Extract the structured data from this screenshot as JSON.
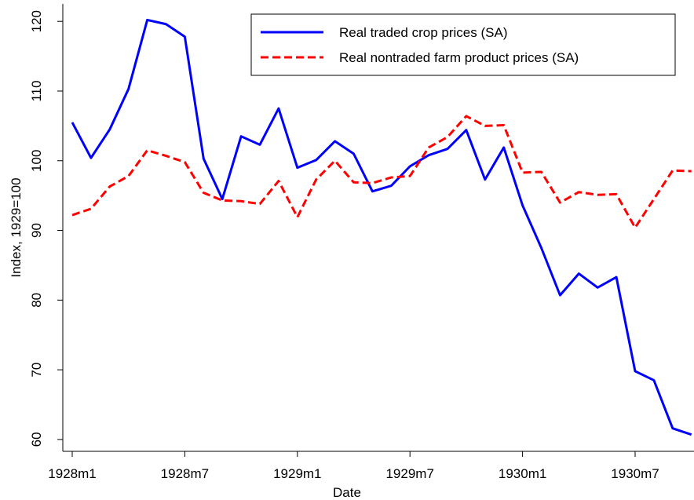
{
  "chart_data": {
    "type": "line",
    "xlabel": "Date",
    "ylabel": "Index, 1929=100",
    "categories": [
      "1928m1",
      null,
      null,
      null,
      null,
      null,
      "1928m7",
      null,
      null,
      null,
      null,
      null,
      "1929m1",
      null,
      null,
      null,
      null,
      null,
      "1929m7",
      null,
      null,
      null,
      null,
      null,
      "1930m1",
      null,
      null,
      null,
      null,
      null,
      "1930m7",
      null,
      null,
      null
    ],
    "series": [
      {
        "name": "Real traded crop prices (SA)",
        "color": "#0000ff",
        "dash": "solid",
        "values": [
          105.5,
          100.4,
          104.5,
          110.3,
          120.2,
          119.6,
          117.8,
          100.3,
          94.5,
          103.5,
          102.3,
          107.5,
          99.0,
          100.1,
          102.8,
          101.0,
          95.6,
          96.4,
          99.2,
          100.8,
          101.7,
          104.4,
          97.3,
          101.9,
          93.6,
          87.5,
          80.7,
          83.8,
          81.8,
          83.3,
          69.8,
          68.5,
          61.6,
          60.7
        ]
      },
      {
        "name": "Real nontraded farm product prices (SA)",
        "color": "#ff0000",
        "dash": "dashed",
        "values": [
          92.2,
          93.1,
          96.3,
          97.8,
          101.5,
          100.7,
          99.8,
          95.4,
          94.3,
          94.2,
          93.8,
          97.1,
          91.9,
          97.3,
          100.0,
          96.9,
          96.8,
          97.6,
          97.8,
          101.9,
          103.4,
          106.4,
          105.0,
          105.1,
          98.3,
          98.4,
          94.0,
          95.5,
          95.1,
          95.2,
          90.4,
          94.5,
          98.6,
          98.5
        ]
      }
    ],
    "ylim": [
      58.3,
      122.5
    ],
    "yticks": [
      60,
      70,
      80,
      90,
      100,
      110,
      120
    ],
    "grid": false,
    "legend": "upper right"
  }
}
